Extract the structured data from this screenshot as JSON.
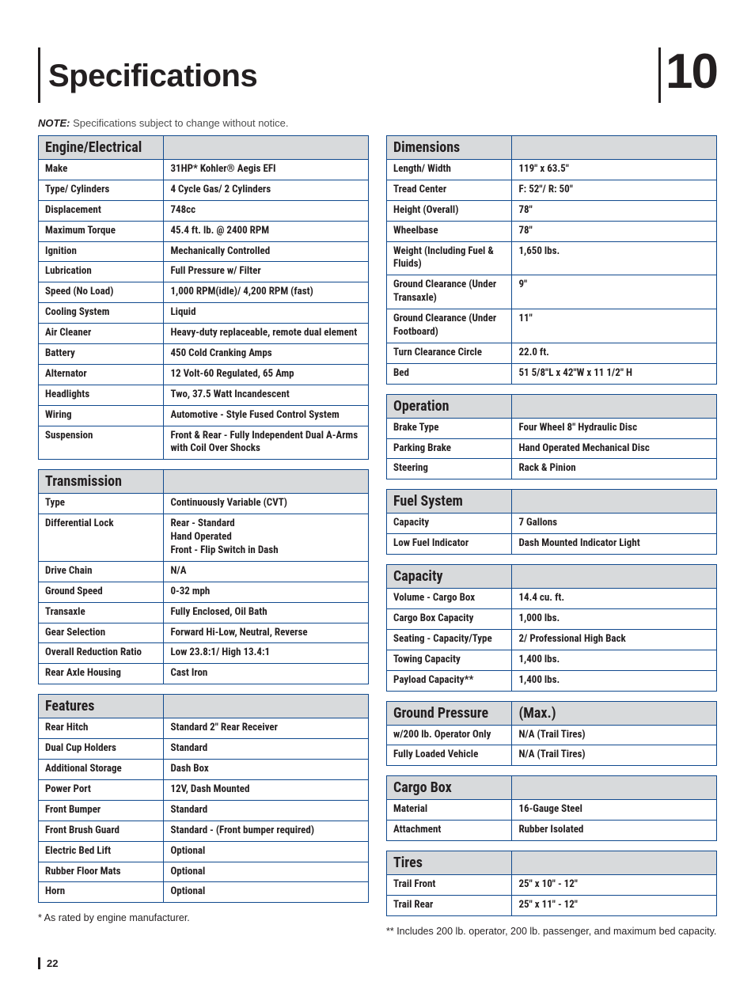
{
  "page": {
    "title": "Specifications",
    "chapter": "10",
    "note_label": "NOTE:",
    "note_text": " Specifications subject to change without notice.",
    "page_number": "22",
    "footnote_left": "* As rated by engine manufacturer.",
    "footnote_right": "** Includes 200 lb. operator, 200 lb. passenger, and maximum bed capacity."
  },
  "tables": {
    "engine": {
      "header": "Engine/Electrical",
      "rows": [
        [
          "Make",
          "31HP* Kohler® Aegis EFI"
        ],
        [
          "Type/ Cylinders",
          "4 Cycle Gas/ 2 Cylinders"
        ],
        [
          "Displacement",
          "748cc"
        ],
        [
          "Maximum Torque",
          "45.4 ft. lb. @ 2400 RPM"
        ],
        [
          "Ignition",
          "Mechanically Controlled"
        ],
        [
          "Lubrication",
          "Full Pressure w/ Filter"
        ],
        [
          "Speed (No Load)",
          "1,000 RPM(idle)/ 4,200 RPM (fast)"
        ],
        [
          "Cooling System",
          "Liquid"
        ],
        [
          "Air Cleaner",
          "Heavy-duty replaceable, remote dual element"
        ],
        [
          "Battery",
          "450 Cold Cranking Amps"
        ],
        [
          "Alternator",
          "12 Volt-60 Regulated, 65 Amp"
        ],
        [
          "Headlights",
          "Two, 37.5 Watt Incandescent"
        ],
        [
          "Wiring",
          "Automotive - Style Fused Control System"
        ],
        [
          "Suspension",
          "Front & Rear - Fully Independent Dual A-Arms with Coil Over Shocks"
        ]
      ]
    },
    "transmission": {
      "header": "Transmission",
      "rows": [
        [
          "Type",
          "Continuously Variable (CVT)"
        ],
        [
          "Differential Lock",
          "Rear - Standard\nHand Operated\nFront - Flip Switch in Dash"
        ],
        [
          "Drive Chain",
          "N/A"
        ],
        [
          "Ground Speed",
          "0-32 mph"
        ],
        [
          "Transaxle",
          "Fully Enclosed, Oil Bath"
        ],
        [
          "Gear Selection",
          "Forward Hi-Low, Neutral, Reverse"
        ],
        [
          "Overall Reduction Ratio",
          "Low 23.8:1/ High 13.4:1"
        ],
        [
          "Rear Axle Housing",
          "Cast Iron"
        ]
      ]
    },
    "features": {
      "header": "Features",
      "rows": [
        [
          "Rear Hitch",
          "Standard 2\" Rear Receiver"
        ],
        [
          "Dual Cup Holders",
          "Standard"
        ],
        [
          "Additional Storage",
          "Dash Box"
        ],
        [
          "Power Port",
          "12V, Dash Mounted"
        ],
        [
          "Front Bumper",
          "Standard"
        ],
        [
          "Front Brush Guard",
          "Standard - (Front bumper required)"
        ],
        [
          "Electric Bed Lift",
          "Optional"
        ],
        [
          "Rubber Floor Mats",
          "Optional"
        ],
        [
          "Horn",
          "Optional"
        ]
      ]
    },
    "dimensions": {
      "header": "Dimensions",
      "rows": [
        [
          "Length/ Width",
          "119\" x 63.5\""
        ],
        [
          "Tread Center",
          "F: 52\"/ R: 50\""
        ],
        [
          "Height (Overall)",
          "78\""
        ],
        [
          "Wheelbase",
          "78\""
        ],
        [
          "Weight (Including Fuel & Fluids)",
          "1,650 lbs."
        ],
        [
          "Ground Clearance (Under Transaxle)",
          "9\""
        ],
        [
          "Ground Clearance (Under Footboard)",
          "11\""
        ],
        [
          "Turn Clearance Circle",
          "22.0 ft."
        ],
        [
          "Bed",
          "51 5/8\"L x 42\"W x 11 1/2\" H"
        ]
      ]
    },
    "operation": {
      "header": "Operation",
      "rows": [
        [
          "Brake Type",
          "Four Wheel 8\" Hydraulic Disc"
        ],
        [
          "Parking Brake",
          "Hand Operated Mechanical Disc"
        ],
        [
          "Steering",
          "Rack & Pinion"
        ]
      ]
    },
    "fuel": {
      "header": "Fuel System",
      "rows": [
        [
          "Capacity",
          "7 Gallons"
        ],
        [
          "Low Fuel Indicator",
          "Dash Mounted Indicator Light"
        ]
      ]
    },
    "capacity": {
      "header": "Capacity",
      "rows": [
        [
          "Volume - Cargo Box",
          "14.4 cu. ft."
        ],
        [
          "Cargo Box Capacity",
          "1,000 lbs."
        ],
        [
          "Seating - Capacity/Type",
          "2/ Professional High Back"
        ],
        [
          "Towing Capacity",
          "1,400 lbs."
        ],
        [
          "Payload Capacity**",
          "1,400 lbs."
        ]
      ]
    },
    "ground_pressure": {
      "header": "Ground Pressure",
      "header2": "(Max.)",
      "rows": [
        [
          "w/200 lb. Operator Only",
          "N/A (Trail Tires)"
        ],
        [
          "Fully Loaded Vehicle",
          "N/A (Trail Tires)"
        ]
      ]
    },
    "cargo_box": {
      "header": "Cargo Box",
      "rows": [
        [
          "Material",
          "16-Gauge Steel"
        ],
        [
          "Attachment",
          "Rubber Isolated"
        ]
      ]
    },
    "tires": {
      "header": "Tires",
      "rows": [
        [
          "Trail Front",
          "25\" x 10\" - 12\""
        ],
        [
          "Trail Rear",
          "25\" x 11\" - 12\""
        ]
      ]
    }
  }
}
